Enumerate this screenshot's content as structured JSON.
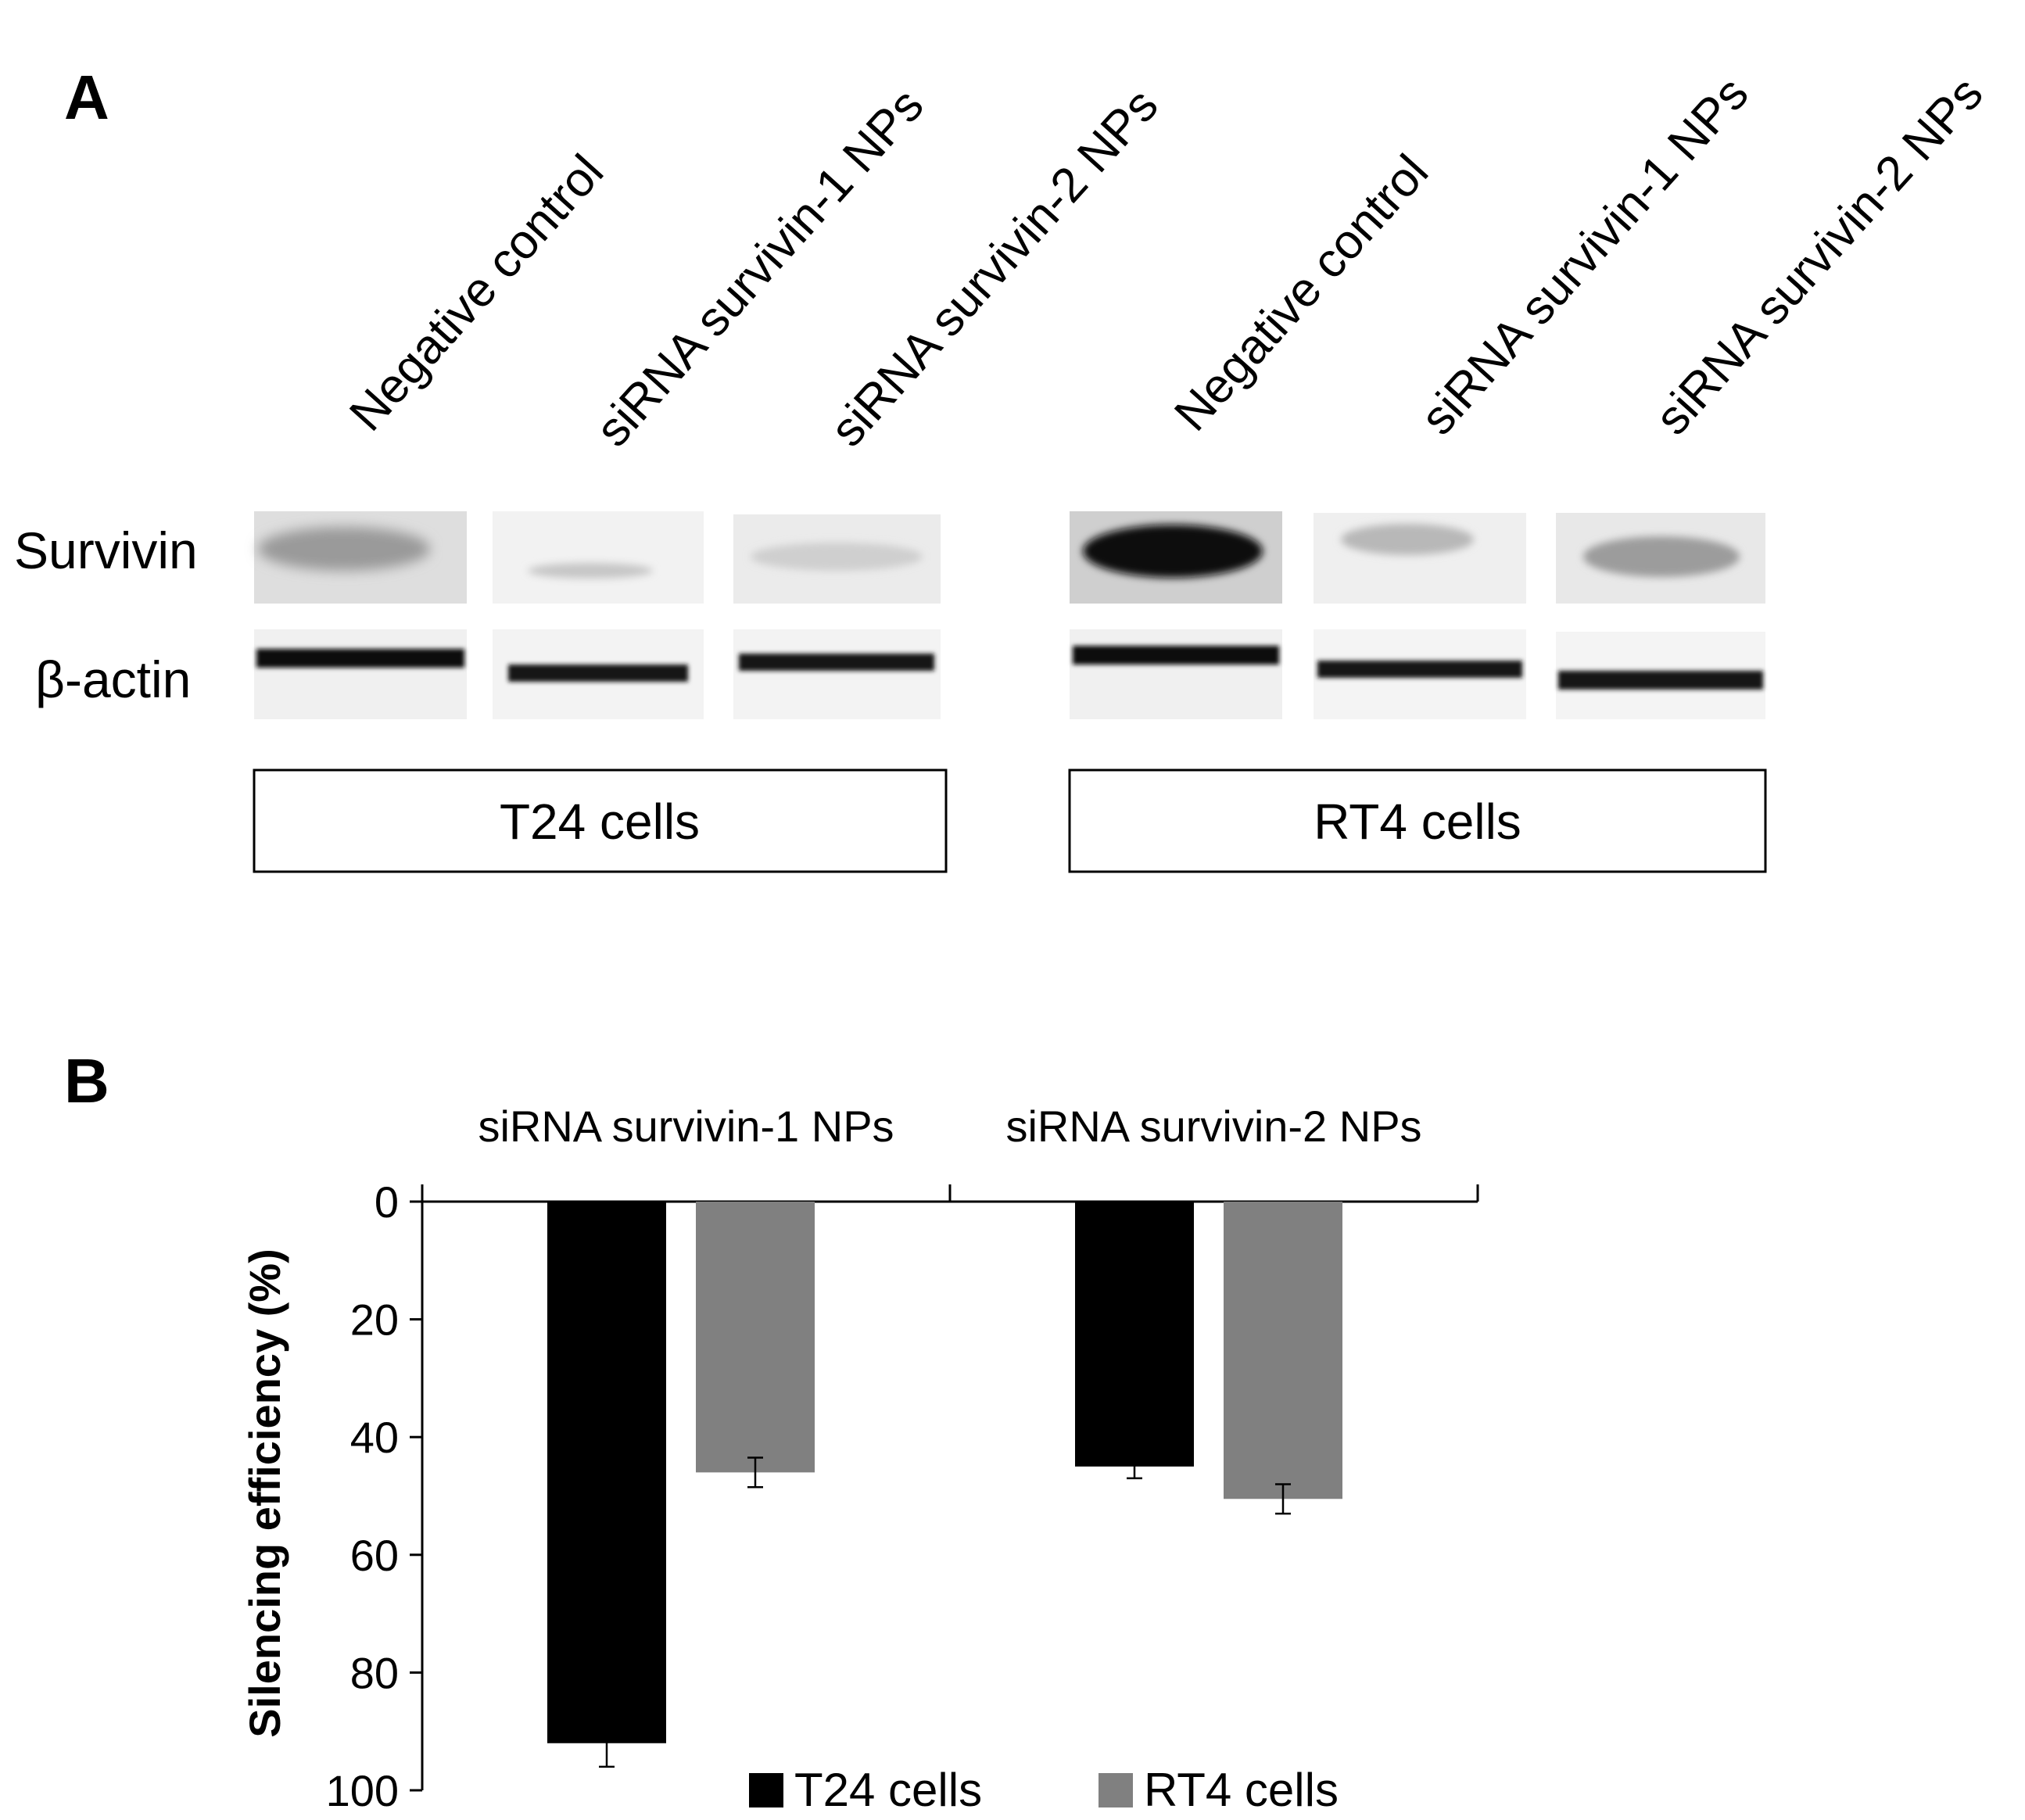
{
  "panel_a": {
    "letter": "A",
    "lanes": [
      "Negative control",
      "siRNA survivin-1 NPs",
      "siRNA survivin-2 NPs",
      "Negative control",
      "siRNA survivin-1 NPs",
      "siRNA survivin-2 NPs"
    ],
    "rows": [
      "Survivin",
      "β-actin"
    ],
    "cell_lines": [
      "T24 cells",
      "RT4 cells"
    ]
  },
  "panel_b": {
    "letter": "B"
  },
  "chart_data": {
    "type": "bar",
    "title": "",
    "xlabel": "",
    "ylabel": "Silencing efficiency (%)",
    "ylim": [
      0,
      100
    ],
    "y_inverted": true,
    "y_ticks": [
      0,
      20,
      40,
      60,
      80,
      100
    ],
    "categories": [
      "siRNA survivin-1 NPs",
      "siRNA survivin-2 NPs"
    ],
    "category_label_position": "top",
    "legend_position": "bottom",
    "series": [
      {
        "name": "T24 cells",
        "color": "#000000",
        "values": [
          92,
          45
        ],
        "errors": [
          4,
          2
        ]
      },
      {
        "name": "RT4 cells",
        "color": "#808080",
        "values": [
          46,
          50.5
        ],
        "errors": [
          2.5,
          2.5
        ]
      }
    ]
  }
}
